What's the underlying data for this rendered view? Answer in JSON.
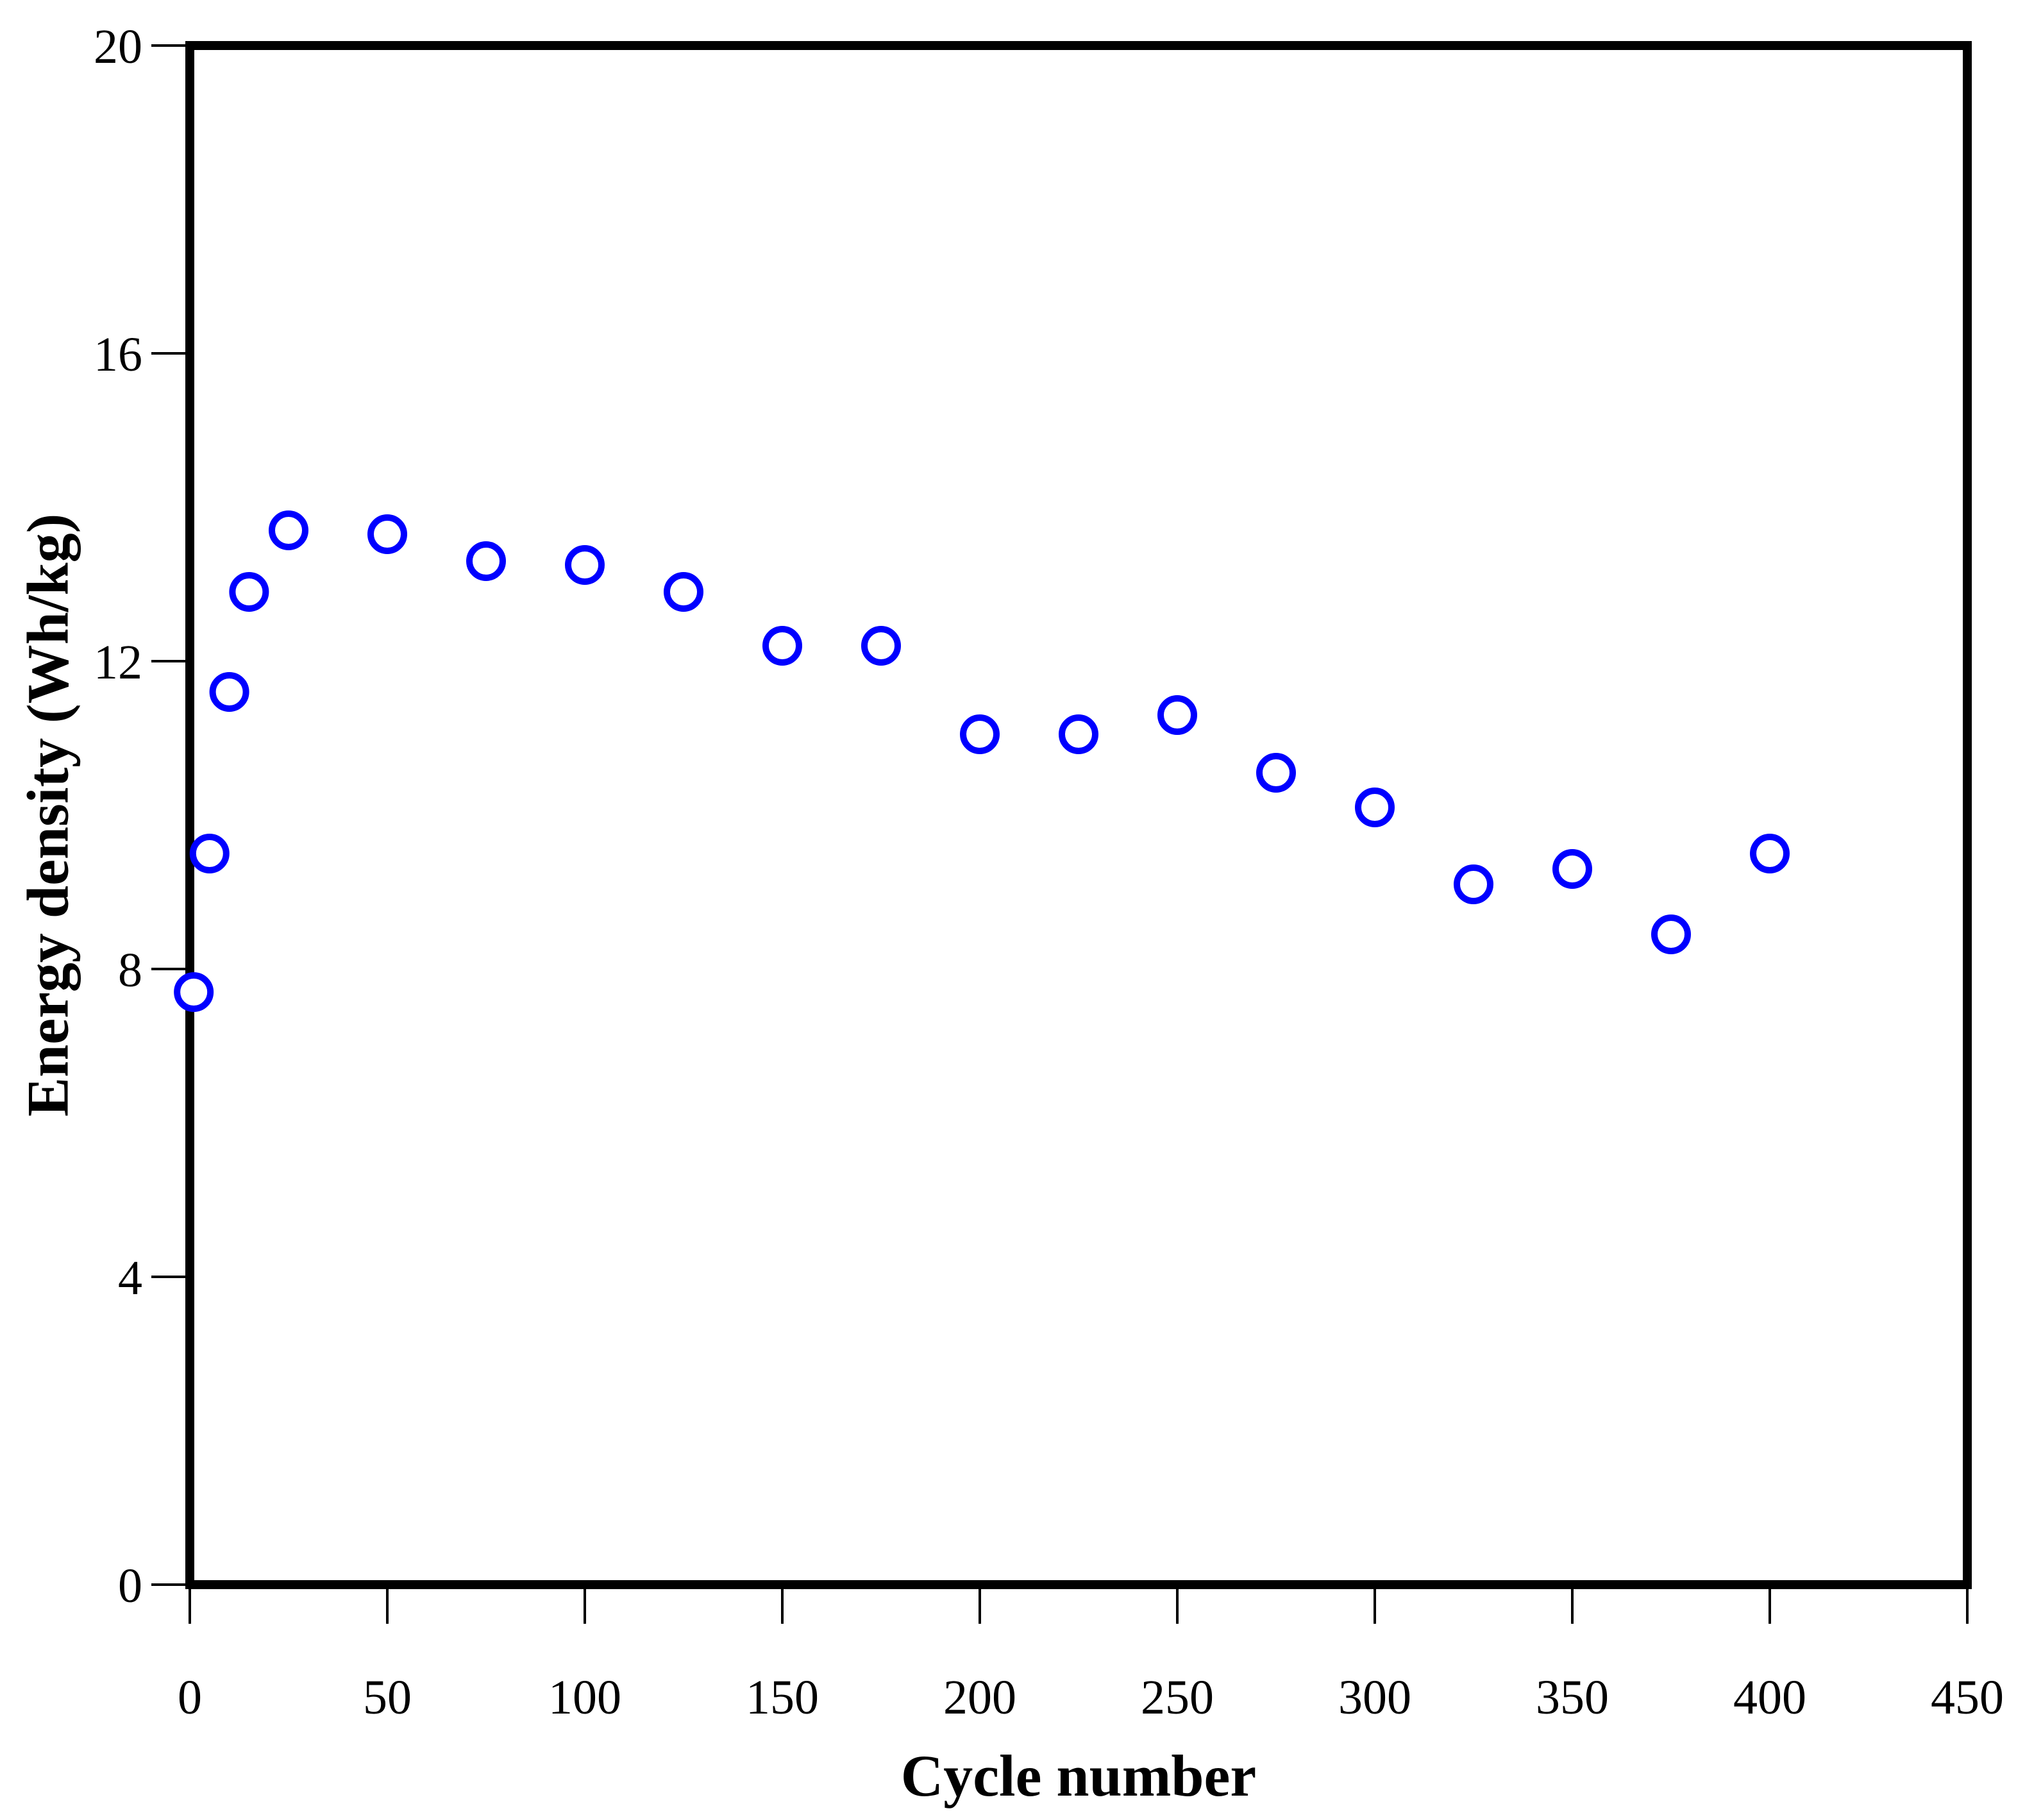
{
  "figure": {
    "background": "#FFFFFF",
    "frame_color": "#000000",
    "tick_color": "#000000",
    "text_color": "#000000"
  },
  "chart_data": {
    "type": "scatter",
    "title": "",
    "xlabel": "Cycle number",
    "ylabel": "Energy density (Wh/kg)",
    "xlim": [
      0,
      450
    ],
    "ylim": [
      0,
      20
    ],
    "x_ticks": [
      0,
      50,
      100,
      150,
      200,
      250,
      300,
      350,
      400,
      450
    ],
    "y_ticks": [
      0,
      4,
      8,
      12,
      16,
      20
    ],
    "grid": false,
    "legend": "none",
    "marker": {
      "shape": "open-circle",
      "color": "#0000FF",
      "fill": "#FFFFFF",
      "radius_px": 26,
      "stroke_px": 10
    },
    "series": [
      {
        "name": "energy-density",
        "points": [
          [
            1,
            7.7
          ],
          [
            5,
            9.5
          ],
          [
            10,
            11.6
          ],
          [
            15,
            12.9
          ],
          [
            25,
            13.7
          ],
          [
            50,
            13.65
          ],
          [
            75,
            13.3
          ],
          [
            100,
            13.25
          ],
          [
            125,
            12.9
          ],
          [
            150,
            12.2
          ],
          [
            175,
            12.2
          ],
          [
            200,
            11.05
          ],
          [
            225,
            11.05
          ],
          [
            250,
            11.3
          ],
          [
            275,
            10.55
          ],
          [
            300,
            10.1
          ],
          [
            325,
            9.1
          ],
          [
            350,
            9.3
          ],
          [
            375,
            8.45
          ],
          [
            400,
            9.5
          ]
        ]
      }
    ]
  }
}
